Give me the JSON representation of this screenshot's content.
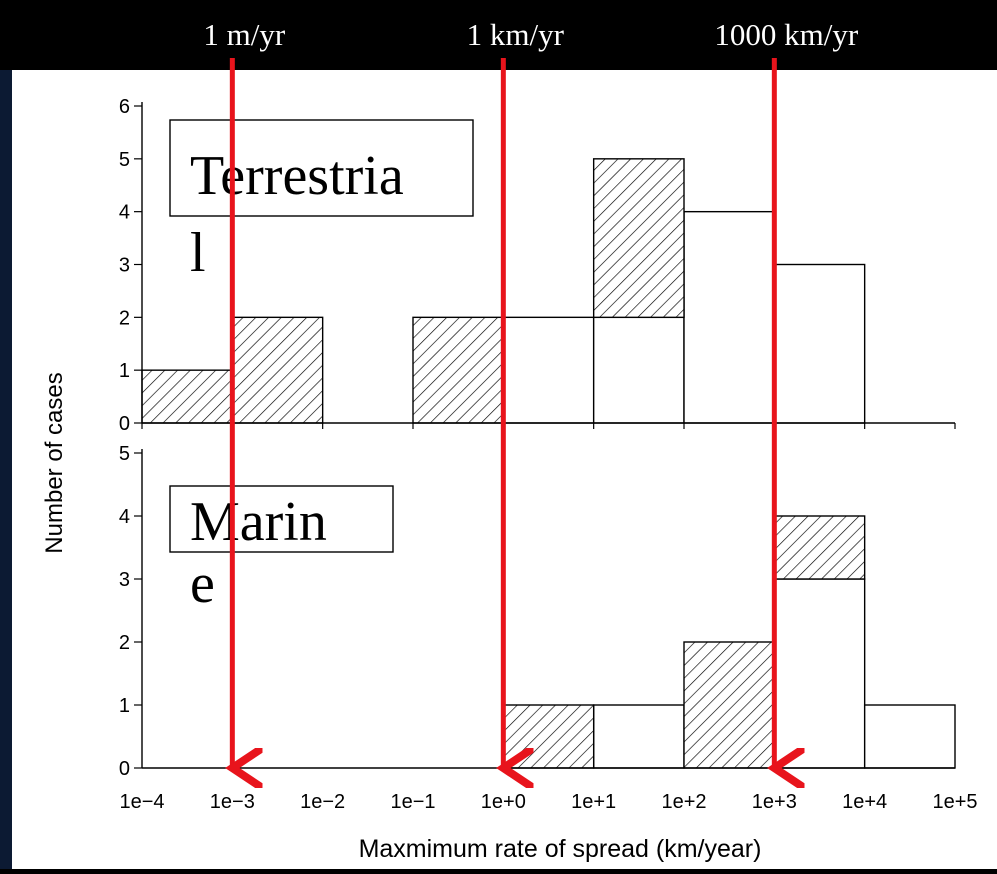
{
  "slide": {
    "rate_markers": [
      "1 m/yr",
      "1 km/yr",
      "1000 km/yr"
    ]
  },
  "chart_data": {
    "type": "bar",
    "xlabel": "Maxmimum rate of spread (km/year)",
    "ylabel": "Number of cases",
    "x_scale": "log10",
    "x_tick_labels": [
      "1e−4",
      "1e−3",
      "1e−2",
      "1e−1",
      "1e+0",
      "1e+1",
      "1e+2",
      "1e+3",
      "1e+4",
      "1e+5"
    ],
    "bin_edges": [
      0.0001,
      0.001,
      0.01,
      0.1,
      1,
      10,
      100,
      1000,
      10000,
      100000
    ],
    "marker_values": [
      0.001,
      1,
      1000
    ],
    "colors": {
      "marker": "#e8141c",
      "frame": "#000000",
      "background": "#ffffff"
    },
    "panels": [
      {
        "label": "Terrestria\nl",
        "ylim": [
          0,
          6
        ],
        "yticks": [
          "0",
          "1",
          "2",
          "3",
          "4",
          "5",
          "6"
        ],
        "series": [
          {
            "style": "open",
            "counts": [
              0,
              0,
              0,
              0,
              2,
              2,
              4,
              3,
              0
            ]
          },
          {
            "style": "hatched",
            "counts": [
              1,
              2,
              0,
              2,
              0,
              3,
              0,
              0,
              0
            ]
          }
        ]
      },
      {
        "label": "Marin\ne",
        "ylim": [
          0,
          5
        ],
        "yticks": [
          "0",
          "1",
          "2",
          "3",
          "4",
          "5"
        ],
        "series": [
          {
            "style": "open",
            "counts": [
              0,
              0,
              0,
              0,
              0,
              1,
              0,
              3,
              1
            ]
          },
          {
            "style": "hatched",
            "counts": [
              0,
              0,
              0,
              0,
              1,
              0,
              2,
              1,
              0
            ]
          }
        ]
      }
    ]
  }
}
